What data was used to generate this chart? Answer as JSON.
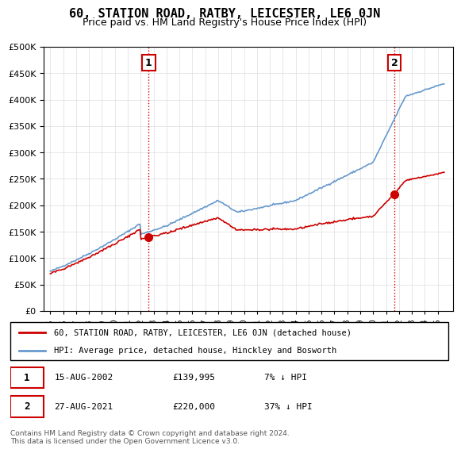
{
  "title": "60, STATION ROAD, RATBY, LEICESTER, LE6 0JN",
  "subtitle": "Price paid vs. HM Land Registry's House Price Index (HPI)",
  "legend_line1": "60, STATION ROAD, RATBY, LEICESTER, LE6 0JN (detached house)",
  "legend_line2": "HPI: Average price, detached house, Hinckley and Bosworth",
  "sale1_date": "15-AUG-2002",
  "sale1_price": "£139,995",
  "sale1_hpi": "7% ↓ HPI",
  "sale2_date": "27-AUG-2021",
  "sale2_price": "£220,000",
  "sale2_hpi": "37% ↓ HPI",
  "footnote": "Contains HM Land Registry data © Crown copyright and database right 2024.\nThis data is licensed under the Open Government Licence v3.0.",
  "sale_color": "#cc0000",
  "hpi_color": "#6699cc",
  "vline_color": "#cc0000",
  "background_color": "#ffffff",
  "ylim": [
    0,
    500000
  ],
  "yticks": [
    0,
    50000,
    100000,
    150000,
    200000,
    250000,
    300000,
    350000,
    400000,
    450000,
    500000
  ],
  "sale1_year": 2002.62,
  "sale1_value": 139995,
  "sale2_year": 2021.65,
  "sale2_value": 220000
}
